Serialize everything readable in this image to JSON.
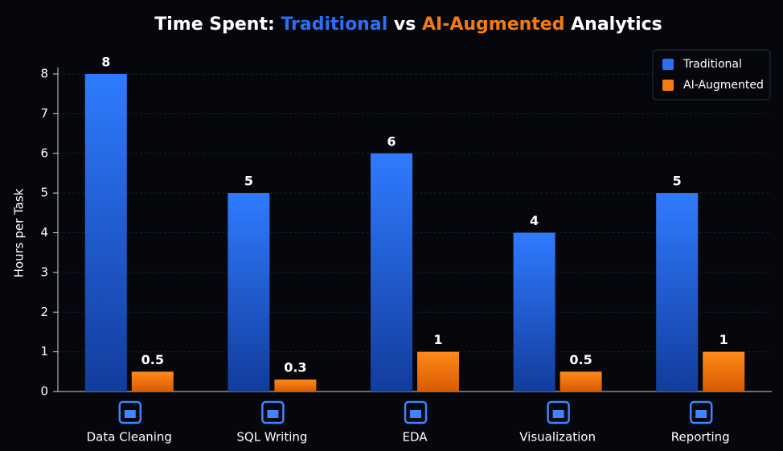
{
  "chart_data": {
    "type": "bar",
    "title": "Time Spent: Traditional vs AI-Augmented Analytics",
    "y_label": "Hours per Task",
    "categories": [
      "Data Cleaning",
      "SQL Writing",
      "EDA",
      "Visualization",
      "Reporting"
    ],
    "series": [
      {
        "name": "Traditional",
        "color": "#2a6ff5",
        "values": [
          8,
          5,
          6,
          4,
          5
        ]
      },
      {
        "name": "AI-Augmented",
        "color": "#f57a12",
        "values": [
          0.5,
          0.3,
          1,
          0.5,
          1
        ]
      }
    ],
    "ylim": [
      0,
      8
    ],
    "yticks": [
      0,
      1,
      2,
      3,
      4,
      5,
      6,
      7,
      8
    ],
    "grid": true,
    "legend": "top-right"
  }
}
